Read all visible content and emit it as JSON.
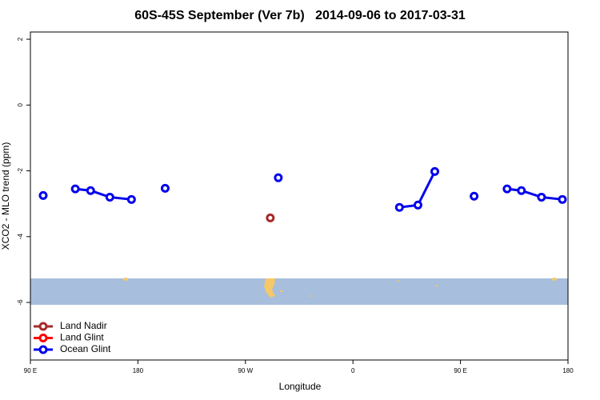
{
  "chart_data": {
    "type": "line",
    "title": "60S-45S September (Ver 7b)   2014-09-06 to 2017-03-31",
    "x_label": "Longitude",
    "y_label": "XCO2 - MLO trend (ppm)",
    "xlim": [
      90,
      540
    ],
    "xticks": [
      {
        "value": 90,
        "label": "90 E"
      },
      180,
      {
        "value": 270,
        "label": "90 W"
      },
      {
        "value": 360,
        "label": "0"
      },
      {
        "value": 450,
        "label": "90 E"
      },
      {
        "value": 540,
        "label": "180"
      }
    ],
    "ylim": [
      -7.75,
      2.22
    ],
    "yticks": [
      -6,
      -4,
      -2,
      0,
      2
    ],
    "legend": "bottom-left",
    "series": [
      {
        "name": "Land Nadir",
        "color": "#a52a2a",
        "x": [
          290.8
        ],
        "values": [
          -3.43
        ]
      },
      {
        "name": "Land Glint",
        "color": "#ff0000",
        "x": [],
        "values": []
      },
      {
        "name": "Ocean Glint",
        "color": "#0000ee",
        "x": [
          100.7,
          null,
          127.6,
          140.4,
          156.5,
          174.6,
          null,
          202.8,
          null,
          297.5,
          null,
          398.9,
          414.4,
          428.5,
          null,
          461.4,
          null,
          489.0,
          501.0,
          517.8,
          535.3
        ],
        "values": [
          -2.75,
          null,
          -2.55,
          -2.6,
          -2.8,
          -2.87,
          null,
          -2.53,
          null,
          -2.21,
          null,
          -3.11,
          -3.04,
          -2.02,
          null,
          -2.77,
          null,
          -2.55,
          -2.6,
          -2.8,
          -2.87
        ]
      }
    ]
  }
}
